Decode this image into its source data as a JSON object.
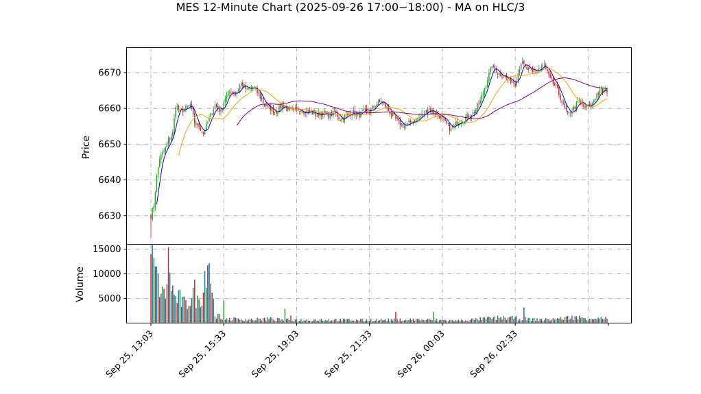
{
  "title": "MES 12-Minute Chart (2025-09-26 17:00~18:00) - MA on HLC/3",
  "colors": {
    "up": "#2ca02c",
    "down": "#d62728",
    "ma_fast": "#0000cc",
    "ma_mid": "#f0a800",
    "ma_slow": "#800080",
    "grid": "#b0b0b0",
    "volume_palette": [
      "#d62728",
      "#1f77b4",
      "#2ca02c",
      "#7f3f7f",
      "#008080",
      "#6b6b6b"
    ]
  },
  "chart_data": [
    {
      "type": "candlestick",
      "panel": "price",
      "ylabel": "Price",
      "ylim": [
        6622,
        6677
      ],
      "yticks": [
        6630,
        6640,
        6650,
        6660,
        6670
      ],
      "xticks": [
        "Sep 25, 13:03",
        "Sep 25, 15:33",
        "Sep 25, 19:03",
        "Sep 25, 21:33",
        "Sep 26, 00:03",
        "Sep 26, 02:33"
      ],
      "grid": true,
      "close_path": [
        [
          0,
          6630
        ],
        [
          2,
          6633
        ],
        [
          4,
          6641
        ],
        [
          6,
          6646
        ],
        [
          9,
          6648
        ],
        [
          12,
          6651
        ],
        [
          15,
          6653
        ],
        [
          17,
          6661
        ],
        [
          20,
          6659
        ],
        [
          24,
          6660
        ],
        [
          27,
          6661
        ],
        [
          30,
          6656
        ],
        [
          33,
          6655
        ],
        [
          36,
          6653
        ],
        [
          40,
          6657
        ],
        [
          44,
          6661
        ],
        [
          48,
          6659
        ],
        [
          51,
          6663
        ],
        [
          55,
          6665
        ],
        [
          58,
          6664
        ],
        [
          62,
          6667
        ],
        [
          66,
          6665
        ],
        [
          70,
          6666
        ],
        [
          74,
          6664
        ],
        [
          78,
          6661
        ],
        [
          82,
          6660
        ],
        [
          86,
          6659
        ],
        [
          90,
          6661
        ],
        [
          94,
          6660
        ],
        [
          98,
          6659
        ],
        [
          102,
          6660
        ],
        [
          106,
          6659
        ],
        [
          110,
          6659
        ],
        [
          114,
          6658
        ],
        [
          118,
          6659
        ],
        [
          122,
          6658
        ],
        [
          126,
          6659
        ],
        [
          130,
          6657
        ],
        [
          134,
          6658
        ],
        [
          138,
          6659
        ],
        [
          142,
          6658
        ],
        [
          146,
          6659
        ],
        [
          150,
          6659
        ],
        [
          154,
          6661
        ],
        [
          158,
          6662
        ],
        [
          162,
          6660
        ],
        [
          166,
          6658
        ],
        [
          170,
          6656
        ],
        [
          174,
          6655
        ],
        [
          178,
          6656
        ],
        [
          182,
          6657
        ],
        [
          186,
          6658
        ],
        [
          190,
          6660
        ],
        [
          194,
          6659
        ],
        [
          198,
          6658
        ],
        [
          202,
          6656
        ],
        [
          206,
          6654
        ],
        [
          210,
          6656
        ],
        [
          214,
          6657
        ],
        [
          218,
          6658
        ],
        [
          222,
          6659
        ],
        [
          226,
          6662
        ],
        [
          230,
          6667
        ],
        [
          234,
          6672
        ],
        [
          238,
          6670
        ],
        [
          242,
          6669
        ],
        [
          246,
          6668
        ],
        [
          250,
          6667
        ],
        [
          254,
          6673
        ],
        [
          258,
          6671
        ],
        [
          262,
          6670
        ],
        [
          266,
          6671
        ],
        [
          270,
          6672
        ],
        [
          274,
          6668
        ],
        [
          278,
          6666
        ],
        [
          282,
          6662
        ],
        [
          286,
          6658
        ],
        [
          290,
          6660
        ],
        [
          294,
          6662
        ],
        [
          298,
          6660
        ],
        [
          302,
          6661
        ],
        [
          306,
          6664
        ],
        [
          310,
          6665
        ],
        [
          313,
          6665
        ]
      ],
      "ma_series": [
        {
          "key": "ma_fast",
          "window": 5
        },
        {
          "key": "ma_mid",
          "window": 20
        },
        {
          "key": "ma_slow",
          "window": 60
        }
      ]
    },
    {
      "type": "bar",
      "panel": "volume",
      "ylabel": "Volume",
      "ylim": [
        0,
        16000
      ],
      "yticks": [
        5000,
        10000,
        15000
      ],
      "grid": true,
      "volume_path": [
        [
          0,
          15500
        ],
        [
          1,
          12500
        ],
        [
          2,
          10500
        ],
        [
          3,
          9800
        ],
        [
          4,
          10700
        ],
        [
          5,
          7500
        ],
        [
          6,
          7800
        ],
        [
          7,
          6000
        ],
        [
          8,
          5600
        ],
        [
          10,
          6100
        ],
        [
          12,
          12000
        ],
        [
          14,
          8200
        ],
        [
          16,
          5200
        ],
        [
          20,
          4800
        ],
        [
          24,
          3500
        ],
        [
          28,
          5800
        ],
        [
          30,
          6400
        ],
        [
          32,
          4200
        ],
        [
          36,
          6600
        ],
        [
          38,
          13000
        ],
        [
          40,
          13000
        ],
        [
          42,
          6500
        ],
        [
          44,
          1800
        ],
        [
          48,
          1200
        ],
        [
          52,
          900
        ],
        [
          60,
          800
        ],
        [
          70,
          700
        ],
        [
          80,
          900
        ],
        [
          90,
          700
        ],
        [
          100,
          600
        ],
        [
          120,
          700
        ],
        [
          140,
          600
        ],
        [
          160,
          650
        ],
        [
          180,
          700
        ],
        [
          200,
          600
        ],
        [
          210,
          500
        ],
        [
          220,
          700
        ],
        [
          230,
          900
        ],
        [
          240,
          1100
        ],
        [
          250,
          1000
        ],
        [
          255,
          900
        ],
        [
          260,
          800
        ],
        [
          270,
          700
        ],
        [
          280,
          900
        ],
        [
          290,
          1200
        ],
        [
          300,
          1000
        ],
        [
          313,
          900
        ]
      ]
    }
  ]
}
